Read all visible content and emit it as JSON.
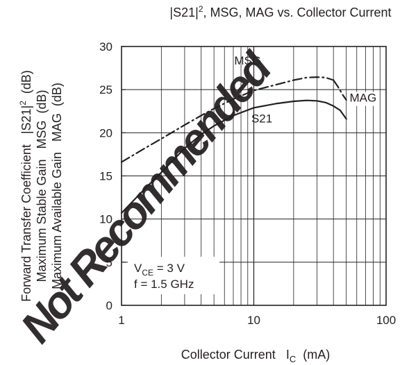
{
  "chart_data": {
    "type": "line",
    "title_parts": [
      "|S21|",
      "2",
      ", MSG, MAG vs. Collector Current"
    ],
    "x_scale": "log",
    "xlim": [
      1,
      100
    ],
    "ylim": [
      0,
      30
    ],
    "x_ticks": [
      1,
      10,
      100
    ],
    "x_tick_labels": [
      "1",
      "10",
      "100"
    ],
    "y_ticks": [
      0,
      5,
      10,
      15,
      20,
      25,
      30
    ],
    "y_tick_labels": [
      "0",
      "5",
      "10",
      "15",
      "20",
      "25",
      "30"
    ],
    "grid": true,
    "xlabel_parts": [
      "Collector Current   I",
      "C",
      "  (mA)"
    ],
    "ylabel_lines": [
      [
        "Forward Transfer Coefficient   |S21|",
        "2",
        "  (dB)"
      ],
      [
        "Maximum Stable Gain   MSG  (dB)"
      ],
      [
        "Maximum Available Gain   MAG  (dB)"
      ]
    ],
    "series": [
      {
        "name": "S21",
        "style": "solid",
        "x": [
          1,
          1.5,
          2,
          3,
          4,
          5,
          7,
          10,
          15,
          20,
          25,
          30,
          35,
          40,
          45,
          50
        ],
        "y": [
          10.7,
          13.5,
          15.4,
          18.2,
          19.8,
          20.8,
          22.0,
          22.9,
          23.4,
          23.65,
          23.75,
          23.7,
          23.5,
          23.1,
          22.6,
          21.6
        ]
      },
      {
        "name": "MSG",
        "style": "dash-dot",
        "x": [
          1,
          1.5,
          2,
          3,
          4,
          5,
          7,
          10,
          15,
          20,
          25,
          30,
          35,
          40
        ],
        "y": [
          16.6,
          18.2,
          19.3,
          20.9,
          22.0,
          22.8,
          23.9,
          24.9,
          25.6,
          26.1,
          26.4,
          26.45,
          26.4,
          26.1
        ]
      },
      {
        "name": "MAG",
        "style": "dash-dot",
        "x": [
          40,
          43,
          45,
          47,
          50
        ],
        "y": [
          26.1,
          25.4,
          24.9,
          24.4,
          23.8
        ]
      }
    ],
    "series_labels": [
      {
        "text": "MSG",
        "x": 9,
        "y": 27.9
      },
      {
        "text": "MAG",
        "x": 67,
        "y": 23.6
      },
      {
        "text": "S21",
        "x": 11.5,
        "y": 21.2
      }
    ],
    "annotation": {
      "line1_parts": [
        "V",
        "CE",
        " = 3 V"
      ],
      "line2": "f = 1.5 GHz"
    },
    "colors": {
      "curve": "#231f20",
      "axis": "#231f20",
      "grid": "#231f20"
    }
  },
  "watermark": {
    "text": "Not Recommended",
    "color": "#e8192c"
  }
}
